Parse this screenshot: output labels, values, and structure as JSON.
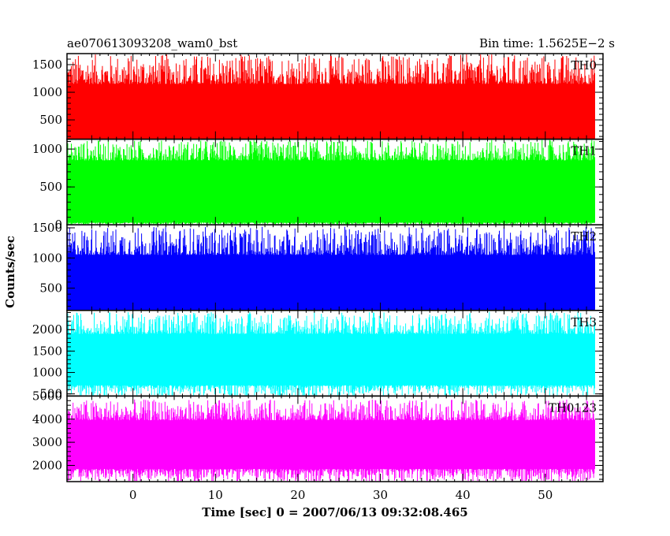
{
  "chart_data": {
    "type": "line",
    "title_left": "ae070613093208_wam0_bst",
    "title_right": "Bin time: 1.5625E−2 s",
    "xlabel": "Time [sec] 0 = 2007/06/13 09:32:08.465",
    "ylabel": "Counts/sec",
    "xlim": [
      -8,
      57
    ],
    "x_ticks": [
      "0",
      "10",
      "20",
      "30",
      "40",
      "50"
    ],
    "x_range": [
      -7.9,
      56.0
    ],
    "panels": [
      {
        "name": "TH0",
        "color": "#ff0000",
        "ylim": [
          150,
          1700
        ],
        "yticks": [
          "500",
          "1000",
          "1500"
        ],
        "band": [
          120,
          1150
        ],
        "spike_max": 1690
      },
      {
        "name": "TH1",
        "color": "#00ff00",
        "ylim": [
          0,
          1130
        ],
        "yticks": [
          "0",
          "500",
          "1000"
        ],
        "band": [
          30,
          850
        ],
        "spike_max": 1120
      },
      {
        "name": "TH2",
        "color": "#0000ff",
        "ylim": [
          130,
          1550
        ],
        "yticks": [
          "500",
          "1000",
          "1500"
        ],
        "band": [
          120,
          1050
        ],
        "spike_max": 1520
      },
      {
        "name": "TH3",
        "color": "#00ffff",
        "ylim": [
          450,
          2450
        ],
        "yticks": [
          "500",
          "1000",
          "1500",
          "2000"
        ],
        "band": [
          700,
          1900
        ],
        "spike_max": 2420
      },
      {
        "name": "TH0123",
        "color": "#ff00ff",
        "ylim": [
          1300,
          5000
        ],
        "yticks": [
          "2000",
          "3000",
          "4000",
          "5000"
        ],
        "band": [
          1850,
          3950
        ],
        "spike_max": 4850
      }
    ]
  }
}
